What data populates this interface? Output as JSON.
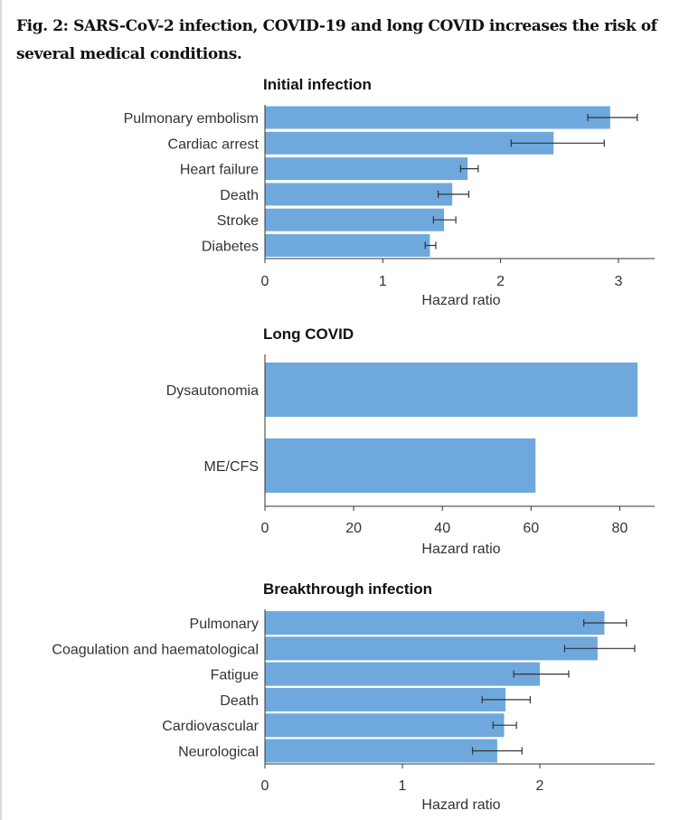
{
  "figure": {
    "title": "Fig. 2: SARS-CoV-2 infection, COVID-19 and long COVID increases the risk of several medical conditions."
  },
  "colors": {
    "bar": "#6fa8dc",
    "axis": "#333333",
    "errorbar": "#333333"
  },
  "chart_data": [
    {
      "type": "bar",
      "orientation": "horizontal",
      "title": "Initial infection",
      "xlabel": "Hazard ratio",
      "ylabel": "",
      "xlim": [
        0,
        3.3
      ],
      "xticks": [
        0,
        1,
        2,
        3
      ],
      "categories": [
        "Pulmonary embolism",
        "Cardiac arrest",
        "Heart failure",
        "Death",
        "Stroke",
        "Diabetes"
      ],
      "values": [
        2.93,
        2.45,
        1.72,
        1.59,
        1.52,
        1.4
      ],
      "error_low": [
        2.74,
        2.09,
        1.66,
        1.47,
        1.43,
        1.36
      ],
      "error_high": [
        3.16,
        2.88,
        1.81,
        1.73,
        1.62,
        1.45
      ]
    },
    {
      "type": "bar",
      "orientation": "horizontal",
      "title": "Long COVID",
      "xlabel": "Hazard ratio",
      "ylabel": "",
      "xlim": [
        0,
        88
      ],
      "xticks": [
        0,
        20,
        40,
        60,
        80
      ],
      "categories": [
        "Dysautonomia",
        "ME/CFS"
      ],
      "values": [
        84.0,
        61.0
      ]
    },
    {
      "type": "bar",
      "orientation": "horizontal",
      "title": "Breakthrough infection",
      "xlabel": "Hazard ratio",
      "ylabel": "",
      "xlim": [
        0,
        2.85
      ],
      "xticks": [
        0,
        1,
        2
      ],
      "categories": [
        "Pulmonary",
        "Coagulation and haematological",
        "Fatigue",
        "Death",
        "Cardiovascular",
        "Neurological"
      ],
      "values": [
        2.47,
        2.42,
        2.0,
        1.75,
        1.74,
        1.69
      ],
      "error_low": [
        2.32,
        2.18,
        1.81,
        1.58,
        1.66,
        1.51
      ],
      "error_high": [
        2.63,
        2.69,
        2.21,
        1.93,
        1.83,
        1.87
      ]
    }
  ]
}
